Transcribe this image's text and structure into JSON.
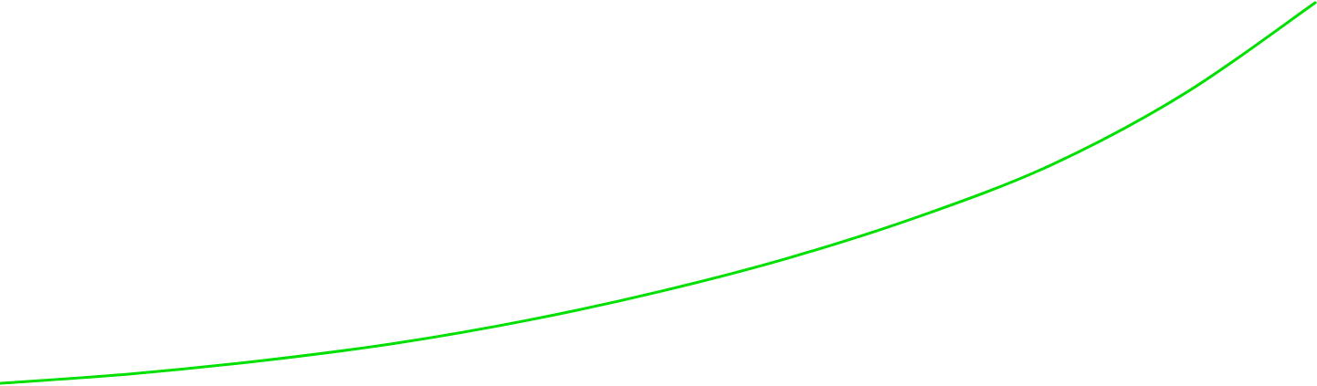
{
  "chart_data": {
    "type": "line",
    "title": "",
    "xlabel": "",
    "ylabel": "",
    "grid": false,
    "legend": "none",
    "axes_visible": false,
    "xlim": [
      0,
      1
    ],
    "ylim": [
      0,
      1
    ],
    "series": [
      {
        "color": "#00e000",
        "x": [
          0.0,
          0.1,
          0.2,
          0.3,
          0.4,
          0.5,
          0.6,
          0.7,
          0.8,
          0.9,
          1.0
        ],
        "y": [
          0.0,
          0.025,
          0.06,
          0.105,
          0.165,
          0.24,
          0.33,
          0.44,
          0.575,
          0.76,
          1.0
        ]
      }
    ]
  }
}
